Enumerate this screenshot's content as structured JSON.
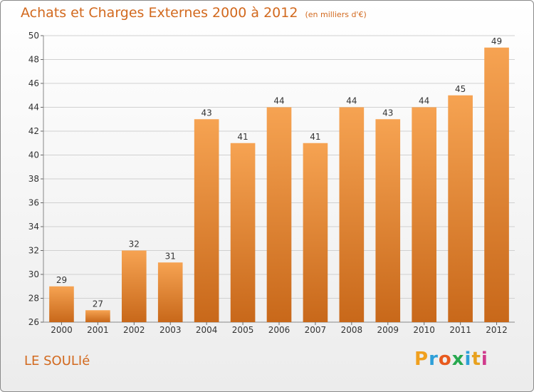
{
  "header": {
    "title": "Achats et Charges Externes 2000 à 2012",
    "unit": "(en milliers d'€)"
  },
  "footer": {
    "commune": "LE SOULIé",
    "logo_letters": [
      "P",
      "r",
      "o",
      "x",
      "i",
      "t",
      "i"
    ],
    "logo_colors": [
      "#f0a01e",
      "#2e9fd8",
      "#e85a1e",
      "#27a84f",
      "#2e9fd8",
      "#e8a11e",
      "#d03a8c"
    ]
  },
  "chart_data": {
    "type": "bar",
    "title": "Achats et Charges Externes 2000 à 2012",
    "subtitle": "(en milliers d'€)",
    "categories": [
      "2000",
      "2001",
      "2002",
      "2003",
      "2004",
      "2005",
      "2006",
      "2007",
      "2008",
      "2009",
      "2010",
      "2011",
      "2012"
    ],
    "values": [
      29,
      27,
      32,
      31,
      43,
      41,
      44,
      41,
      44,
      43,
      44,
      45,
      49
    ],
    "ylim": [
      26,
      50
    ],
    "yticks": [
      26,
      28,
      30,
      32,
      34,
      36,
      38,
      40,
      42,
      44,
      46,
      48,
      50
    ],
    "grid": true,
    "colors": {
      "bar_top": "#f6a352",
      "bar_bottom": "#c8681a",
      "grid": "#d0d0d0",
      "text": "#333333"
    }
  }
}
